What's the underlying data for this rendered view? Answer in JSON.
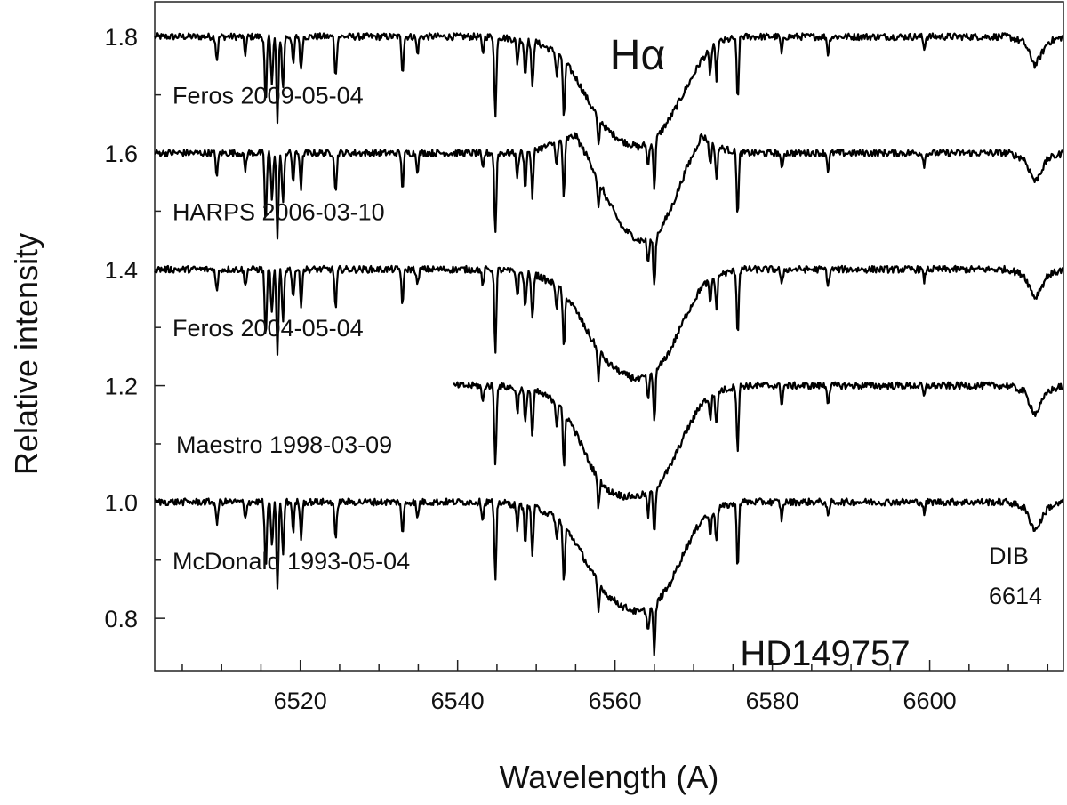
{
  "chart_data": {
    "type": "line",
    "title": "",
    "xlabel": "Wavelength (A)",
    "ylabel": "Relative intensity",
    "xlim": [
      6501.5,
      6617
    ],
    "ylim": [
      0.71,
      1.86
    ],
    "x_ticks": [
      6520,
      6540,
      6560,
      6580,
      6600
    ],
    "x_tick_labels": [
      "6520",
      "6540",
      "6560",
      "6580",
      "6600"
    ],
    "y_ticks": [
      0.8,
      1.0,
      1.2,
      1.4,
      1.6,
      1.8
    ],
    "y_tick_labels": [
      "0.8",
      "1.0",
      "1.2",
      "1.4",
      "1.6",
      "1.8"
    ],
    "grid": false,
    "annotations": {
      "line_id": "Hα",
      "star": "HD149757",
      "dib_label": "DIB",
      "dib_wavelength": "6614"
    },
    "series": [
      {
        "name": "Feros 2009-05-04",
        "continuum": 1.8,
        "x": [
          6501.5,
          6545,
          6550,
          6553,
          6555,
          6557,
          6559,
          6561,
          6563,
          6565,
          6567,
          6569,
          6571,
          6573,
          6576,
          6585,
          6610,
          6612,
          6613.4,
          6615,
          6617
        ],
        "y": [
          1.8,
          1.8,
          1.79,
          1.77,
          1.73,
          1.68,
          1.64,
          1.62,
          1.61,
          1.62,
          1.66,
          1.71,
          1.76,
          1.79,
          1.8,
          1.8,
          1.8,
          1.79,
          1.75,
          1.79,
          1.8
        ]
      },
      {
        "name": "HARPS 2006-03-10",
        "continuum": 1.6,
        "x": [
          6501.5,
          6548,
          6551,
          6553,
          6555,
          6557,
          6559,
          6561,
          6563,
          6565,
          6567,
          6569,
          6571,
          6573,
          6576,
          6585,
          6610,
          6612,
          6613.4,
          6615,
          6617
        ],
        "y": [
          1.6,
          1.6,
          1.61,
          1.62,
          1.63,
          1.58,
          1.52,
          1.47,
          1.45,
          1.45,
          1.5,
          1.57,
          1.63,
          1.61,
          1.6,
          1.6,
          1.6,
          1.59,
          1.55,
          1.59,
          1.6
        ]
      },
      {
        "name": "Feros 2004-05-04",
        "continuum": 1.4,
        "x": [
          6501.5,
          6545,
          6550,
          6553,
          6555,
          6557,
          6559,
          6561,
          6563,
          6565,
          6567,
          6569,
          6571,
          6573,
          6576,
          6585,
          6610,
          6612,
          6613.4,
          6615,
          6617
        ],
        "y": [
          1.4,
          1.4,
          1.39,
          1.37,
          1.33,
          1.28,
          1.24,
          1.22,
          1.21,
          1.22,
          1.26,
          1.32,
          1.37,
          1.39,
          1.4,
          1.4,
          1.4,
          1.39,
          1.35,
          1.39,
          1.4
        ]
      },
      {
        "name": "Maestro 1998-03-09",
        "continuum": 1.2,
        "x": [
          6539.5,
          6545,
          6550,
          6553,
          6555,
          6557,
          6559,
          6561,
          6563,
          6565,
          6567,
          6569,
          6571,
          6573,
          6576,
          6585,
          6610,
          6612,
          6613.4,
          6615,
          6617
        ],
        "y": [
          1.2,
          1.2,
          1.19,
          1.17,
          1.12,
          1.06,
          1.02,
          1.01,
          1.01,
          1.02,
          1.06,
          1.12,
          1.17,
          1.19,
          1.2,
          1.2,
          1.2,
          1.19,
          1.15,
          1.19,
          1.2
        ]
      },
      {
        "name": "McDonald 1993-05-04",
        "continuum": 1.0,
        "x": [
          6501.5,
          6545,
          6550,
          6553,
          6555,
          6557,
          6559,
          6561,
          6563,
          6565,
          6567,
          6569,
          6571,
          6573,
          6576,
          6585,
          6610,
          6612,
          6613.4,
          6615,
          6617
        ],
        "y": [
          1.0,
          1.0,
          0.99,
          0.97,
          0.93,
          0.88,
          0.84,
          0.82,
          0.81,
          0.82,
          0.86,
          0.92,
          0.97,
          0.99,
          1.0,
          1.0,
          1.0,
          0.99,
          0.95,
          0.99,
          1.0
        ]
      }
    ],
    "telluric_lines": [
      {
        "x": 6509.4,
        "depth": 0.04
      },
      {
        "x": 6513.0,
        "depth": 0.03
      },
      {
        "x": 6515.6,
        "depth": 0.12
      },
      {
        "x": 6516.4,
        "depth": 0.08
      },
      {
        "x": 6517.1,
        "depth": 0.15
      },
      {
        "x": 6517.8,
        "depth": 0.09
      },
      {
        "x": 6519.1,
        "depth": 0.05
      },
      {
        "x": 6520.1,
        "depth": 0.06
      },
      {
        "x": 6524.5,
        "depth": 0.07
      },
      {
        "x": 6533.0,
        "depth": 0.06
      },
      {
        "x": 6534.9,
        "depth": 0.03
      },
      {
        "x": 6543.2,
        "depth": 0.03
      },
      {
        "x": 6544.8,
        "depth": 0.14
      },
      {
        "x": 6547.6,
        "depth": 0.04
      },
      {
        "x": 6548.6,
        "depth": 0.06
      },
      {
        "x": 6549.5,
        "depth": 0.08
      },
      {
        "x": 6552.6,
        "depth": 0.04
      },
      {
        "x": 6553.5,
        "depth": 0.1
      },
      {
        "x": 6557.9,
        "depth": 0.05
      },
      {
        "x": 6564.2,
        "depth": 0.04
      },
      {
        "x": 6565.0,
        "depth": 0.08
      },
      {
        "x": 6572.1,
        "depth": 0.04
      },
      {
        "x": 6572.9,
        "depth": 0.06
      },
      {
        "x": 6575.6,
        "depth": 0.11
      },
      {
        "x": 6581.2,
        "depth": 0.03
      },
      {
        "x": 6587.1,
        "depth": 0.03
      },
      {
        "x": 6599.3,
        "depth": 0.02
      }
    ]
  }
}
